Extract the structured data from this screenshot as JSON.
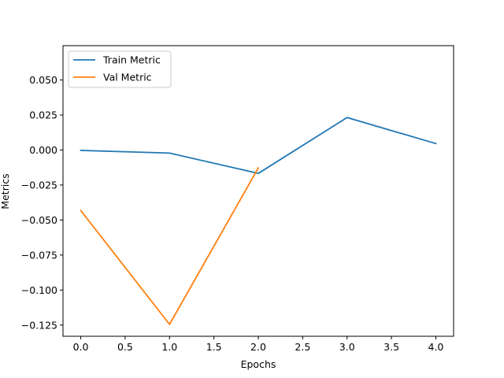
{
  "chart_data": {
    "type": "line",
    "title": "",
    "xlabel": "Epochs",
    "ylabel": "Metrics",
    "xlim": [
      -0.2,
      4.2
    ],
    "ylim": [
      -0.133,
      0.0745
    ],
    "xticks": [
      0.0,
      0.5,
      1.0,
      1.5,
      2.0,
      2.5,
      3.0,
      3.5,
      4.0
    ],
    "xtick_labels": [
      "0.0",
      "0.5",
      "1.0",
      "1.5",
      "2.0",
      "2.5",
      "3.0",
      "3.5",
      "4.0"
    ],
    "yticks": [
      -0.125,
      -0.1,
      -0.075,
      -0.05,
      -0.025,
      0.0,
      0.025,
      0.05
    ],
    "ytick_labels": [
      "−0.125",
      "−0.100",
      "−0.075",
      "−0.050",
      "−0.025",
      "0.000",
      "0.025",
      "0.050"
    ],
    "grid": false,
    "legend_position": "top-left",
    "series": [
      {
        "name": "Train Metric",
        "color": "#1f77b4",
        "x": [
          0,
          1,
          2,
          3,
          4
        ],
        "values": [
          -0.0003,
          -0.0022,
          -0.0167,
          0.0232,
          0.0046
        ]
      },
      {
        "name": "Val Metric",
        "color": "#ff7f0e",
        "x": [
          0,
          1,
          2
        ],
        "values": [
          -0.0432,
          -0.1245,
          -0.0128
        ]
      }
    ]
  }
}
